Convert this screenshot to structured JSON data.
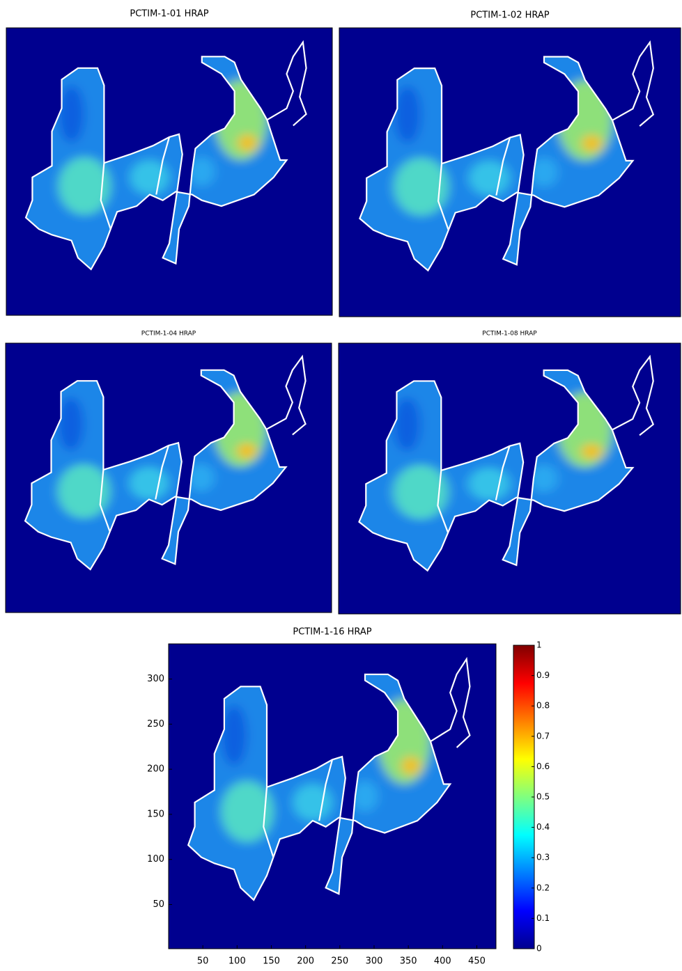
{
  "chart_data": [
    {
      "type": "heatmap",
      "title": "PCTIM-1-01 HRAP"
    },
    {
      "type": "heatmap",
      "title": "PCTIM-1-02 HRAP"
    },
    {
      "type": "heatmap",
      "title": "PCTIM-1-04 HRAP"
    },
    {
      "type": "heatmap",
      "title": "PCTIM-1-08 HRAP"
    },
    {
      "type": "heatmap",
      "title": "PCTIM-1-16 HRAP",
      "xlim": [
        0,
        478
      ],
      "xticks": [
        50,
        100,
        150,
        200,
        250,
        300,
        350,
        400,
        450
      ],
      "ylim": [
        1,
        339
      ],
      "yticks": [
        50,
        100,
        150,
        200,
        250,
        300
      ],
      "colormap": "jet",
      "colorbar": {
        "clim": [
          0,
          1
        ],
        "ticks": [
          0,
          0.1,
          0.2,
          0.3,
          0.4,
          0.5,
          0.6,
          0.7,
          0.8,
          0.9,
          1
        ]
      }
    }
  ]
}
